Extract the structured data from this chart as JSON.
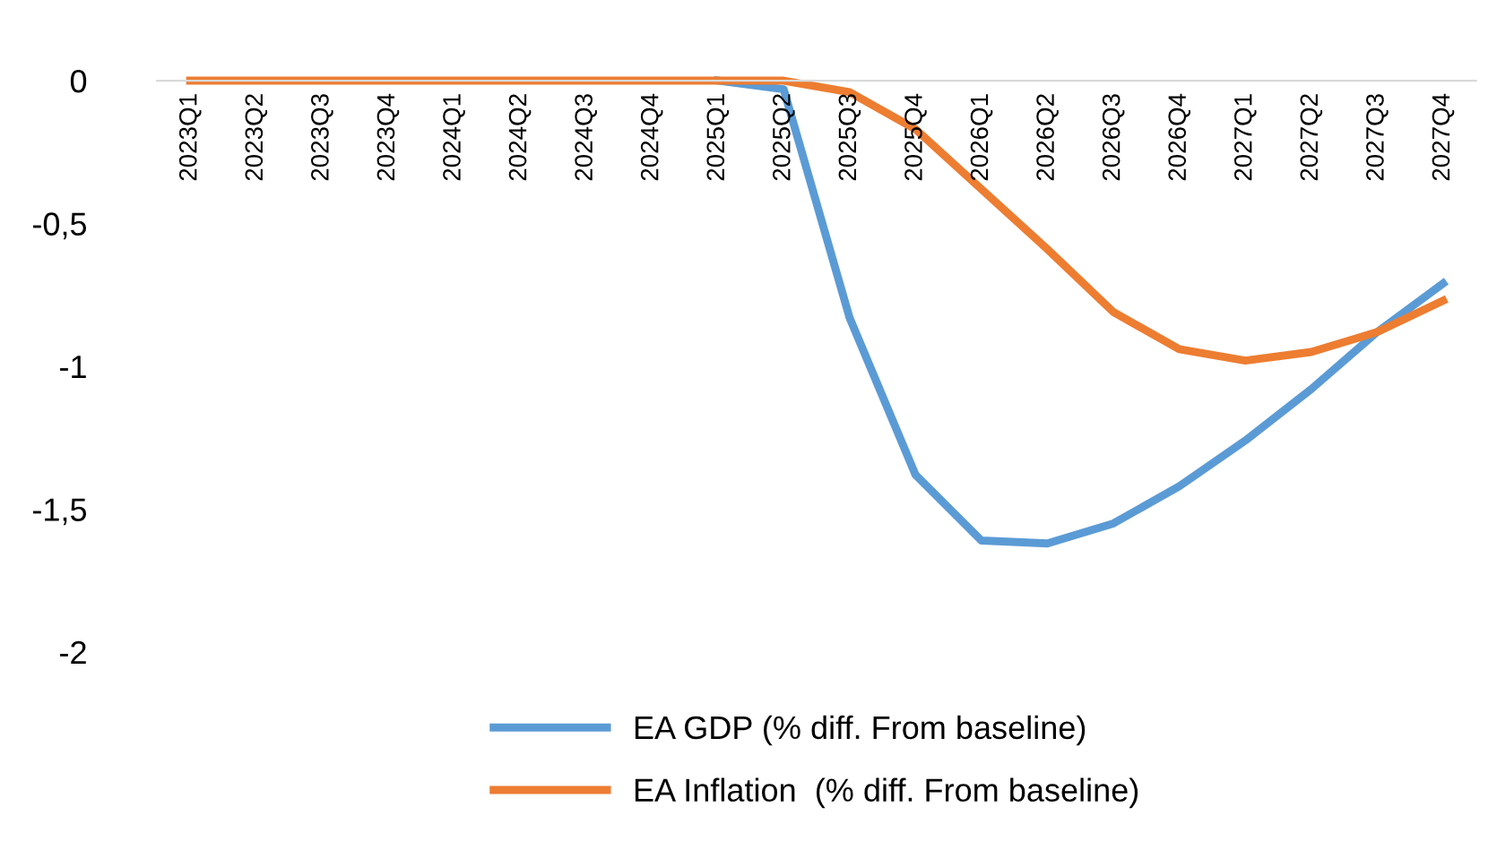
{
  "chart_data": {
    "type": "line",
    "categories": [
      "2023Q1",
      "2023Q2",
      "2023Q3",
      "2023Q4",
      "2024Q1",
      "2024Q2",
      "2024Q3",
      "2024Q4",
      "2025Q1",
      "2025Q2",
      "2025Q3",
      "2025Q4",
      "2026Q1",
      "2026Q2",
      "2026Q3",
      "2026Q4",
      "2027Q1",
      "2027Q2",
      "2027Q3",
      "2027Q4"
    ],
    "series": [
      {
        "name": "EA GDP (% diff. From baseline)",
        "color": "#5b9bd5",
        "values": [
          null,
          null,
          null,
          null,
          null,
          null,
          null,
          null,
          0,
          -0.03,
          -0.83,
          -1.38,
          -1.61,
          -1.62,
          -1.55,
          -1.42,
          -1.26,
          -1.08,
          -0.88,
          -0.71
        ]
      },
      {
        "name": "EA Inflation  (% diff. From baseline)",
        "color": "#ed7d31",
        "values": [
          0,
          0,
          0,
          0,
          0,
          0,
          0,
          0,
          0,
          0,
          -0.04,
          -0.17,
          -0.38,
          -0.59,
          -0.81,
          -0.94,
          -0.98,
          -0.95,
          -0.88,
          -0.77
        ]
      }
    ],
    "ylim": [
      -2,
      0
    ],
    "yticks": [
      {
        "value": 0,
        "label": "0"
      },
      {
        "value": -0.5,
        "label": "-0,5"
      },
      {
        "value": -1,
        "label": "-1"
      },
      {
        "value": -1.5,
        "label": "-1,5"
      },
      {
        "value": -2,
        "label": "-2"
      }
    ],
    "grid": false,
    "legend": "bottom",
    "marker": "none",
    "line_style": "solid"
  }
}
